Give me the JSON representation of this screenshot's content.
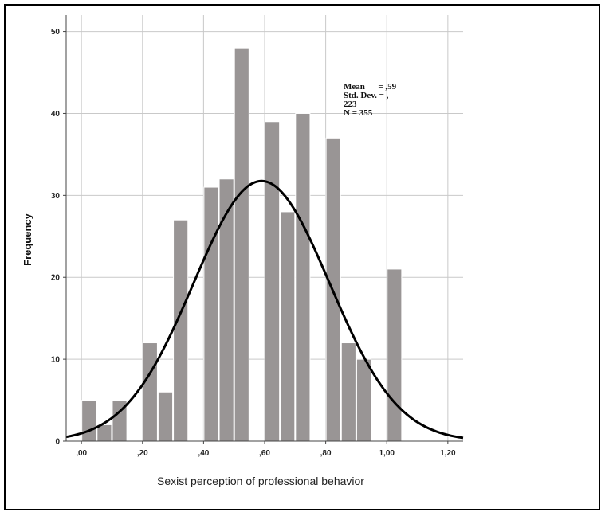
{
  "chart_data": {
    "type": "bar",
    "subtype": "histogram with normal curve",
    "title": "",
    "xlabel": "Sexist perception of professional behavior",
    "ylabel": "Frequency",
    "xlim": [
      -0.05,
      1.25
    ],
    "ylim": [
      0,
      52
    ],
    "xticks": [
      0.0,
      0.2,
      0.4,
      0.6,
      0.8,
      1.0,
      1.2
    ],
    "xtick_labels": [
      ",00",
      ",20",
      ",40",
      ",60",
      ",80",
      "1,00",
      "1,20"
    ],
    "yticks": [
      0,
      10,
      20,
      30,
      40,
      50
    ],
    "ytick_labels": [
      "0",
      "10",
      "20",
      "30",
      "40",
      "50"
    ],
    "grid": true,
    "bar_color": "#999595",
    "curve_color": "#000000",
    "bins": [
      {
        "x0": 0.0,
        "x1": 0.05,
        "value": 5
      },
      {
        "x0": 0.05,
        "x1": 0.1,
        "value": 2
      },
      {
        "x0": 0.1,
        "x1": 0.15,
        "value": 5
      },
      {
        "x0": 0.2,
        "x1": 0.25,
        "value": 12
      },
      {
        "x0": 0.25,
        "x1": 0.3,
        "value": 6
      },
      {
        "x0": 0.3,
        "x1": 0.35,
        "value": 27
      },
      {
        "x0": 0.4,
        "x1": 0.45,
        "value": 31
      },
      {
        "x0": 0.45,
        "x1": 0.5,
        "value": 32
      },
      {
        "x0": 0.5,
        "x1": 0.55,
        "value": 48
      },
      {
        "x0": 0.6,
        "x1": 0.65,
        "value": 39
      },
      {
        "x0": 0.65,
        "x1": 0.7,
        "value": 28
      },
      {
        "x0": 0.7,
        "x1": 0.75,
        "value": 40
      },
      {
        "x0": 0.8,
        "x1": 0.85,
        "value": 37
      },
      {
        "x0": 0.85,
        "x1": 0.9,
        "value": 12
      },
      {
        "x0": 0.9,
        "x1": 0.95,
        "value": 10
      },
      {
        "x0": 1.0,
        "x1": 1.05,
        "value": 21
      }
    ],
    "normal_curve": {
      "mean": 0.59,
      "sd": 0.223,
      "n": 355,
      "bin_width": 0.05
    },
    "stats_text": [
      "Mean      = ,59",
      "Std. Dev. = ,",
      "223",
      "N = 355"
    ]
  }
}
